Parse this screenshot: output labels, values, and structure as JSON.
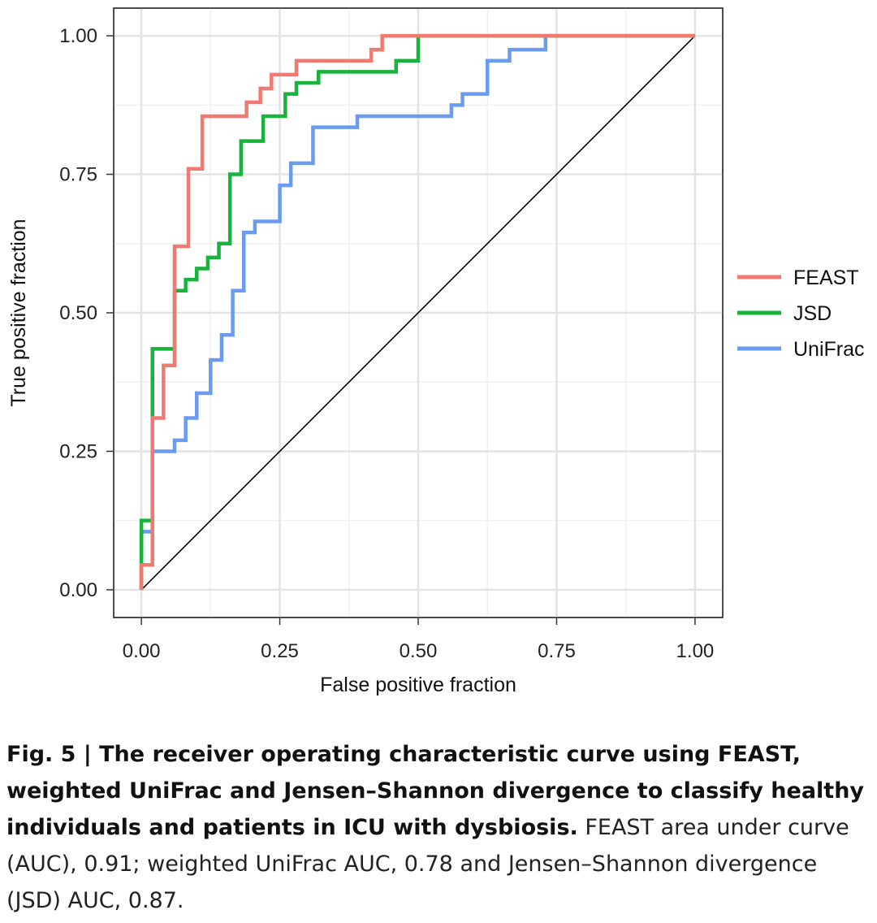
{
  "chart_data": {
    "type": "line",
    "title": "",
    "xlabel": "False positive fraction",
    "ylabel": "True positive fraction",
    "xlim": [
      -0.05,
      1.05
    ],
    "ylim": [
      -0.05,
      1.05
    ],
    "x_ticks": [
      0,
      0.25,
      0.5,
      0.75,
      1
    ],
    "y_ticks": [
      0,
      0.25,
      0.5,
      0.75,
      1
    ],
    "x_tick_labels": [
      "0.00",
      "0.25",
      "0.50",
      "0.75",
      "1.00"
    ],
    "y_tick_labels": [
      "0.00",
      "0.25",
      "0.50",
      "0.75",
      "1.00"
    ],
    "grid": true,
    "legend_position": "right",
    "reference_line": {
      "x": [
        0,
        1
      ],
      "y": [
        0,
        1
      ],
      "color": "#000000"
    },
    "series": [
      {
        "name": "FEAST",
        "color": "#F07A70",
        "x": [
          0,
          0,
          0.02,
          0.02,
          0.04,
          0.04,
          0.06,
          0.06,
          0.085,
          0.085,
          0.11,
          0.11,
          0.19,
          0.19,
          0.215,
          0.215,
          0.235,
          0.235,
          0.28,
          0.28,
          0.415,
          0.415,
          0.435,
          0.435,
          1.0
        ],
        "y": [
          0,
          0.045,
          0.045,
          0.31,
          0.31,
          0.405,
          0.405,
          0.62,
          0.62,
          0.76,
          0.76,
          0.855,
          0.855,
          0.88,
          0.88,
          0.905,
          0.905,
          0.93,
          0.93,
          0.955,
          0.955,
          0.975,
          0.975,
          1.0,
          1.0
        ]
      },
      {
        "name": "JSD",
        "color": "#17B33C",
        "x": [
          0,
          0,
          0.02,
          0.02,
          0.06,
          0.06,
          0.08,
          0.08,
          0.1,
          0.1,
          0.12,
          0.12,
          0.14,
          0.14,
          0.16,
          0.16,
          0.18,
          0.18,
          0.22,
          0.22,
          0.26,
          0.26,
          0.28,
          0.28,
          0.32,
          0.32,
          0.46,
          0.46,
          0.5,
          0.5,
          1.0
        ],
        "y": [
          0,
          0.125,
          0.125,
          0.435,
          0.435,
          0.54,
          0.54,
          0.56,
          0.56,
          0.58,
          0.58,
          0.6,
          0.6,
          0.625,
          0.625,
          0.75,
          0.75,
          0.81,
          0.81,
          0.855,
          0.855,
          0.895,
          0.895,
          0.915,
          0.915,
          0.935,
          0.935,
          0.955,
          0.955,
          1.0,
          1.0
        ]
      },
      {
        "name": "UniFrac",
        "color": "#6A9BEE",
        "x": [
          0,
          0,
          0.02,
          0.02,
          0.06,
          0.06,
          0.08,
          0.08,
          0.1,
          0.1,
          0.125,
          0.125,
          0.145,
          0.145,
          0.165,
          0.165,
          0.185,
          0.185,
          0.205,
          0.205,
          0.25,
          0.25,
          0.27,
          0.27,
          0.31,
          0.31,
          0.39,
          0.39,
          0.56,
          0.56,
          0.58,
          0.58,
          0.625,
          0.625,
          0.665,
          0.665,
          0.73,
          0.73,
          1.0
        ],
        "y": [
          0,
          0.105,
          0.105,
          0.25,
          0.25,
          0.27,
          0.27,
          0.31,
          0.31,
          0.355,
          0.355,
          0.415,
          0.415,
          0.46,
          0.46,
          0.54,
          0.54,
          0.645,
          0.645,
          0.665,
          0.665,
          0.73,
          0.73,
          0.77,
          0.77,
          0.835,
          0.835,
          0.855,
          0.855,
          0.875,
          0.875,
          0.895,
          0.895,
          0.955,
          0.955,
          0.975,
          0.975,
          1.0,
          1.0
        ]
      }
    ]
  },
  "caption": {
    "bold": "Fig. 5 | The receiver operating characteristic curve using FEAST, weighted UniFrac and Jensen–Shannon divergence to classify healthy individuals and patients in ICU with dysbiosis.",
    "normal": " FEAST area under curve (AUC), 0.91; weighted UniFrac AUC, 0.78 and Jensen–Shannon divergence (JSD) AUC, 0.87."
  }
}
